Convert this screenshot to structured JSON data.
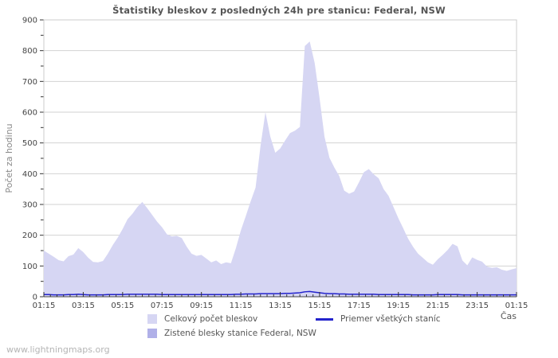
{
  "page": {
    "watermark": "www.lightningmaps.org",
    "background": "#ffffff"
  },
  "chart_data": {
    "type": "area",
    "title": "Štatistiky bleskov z posledných 24h pre stanicu: Federal, NSW",
    "ylabel": "Počet za hodinu",
    "xlabel": "Čas",
    "ylim": [
      0,
      900
    ],
    "grid": true,
    "legend_position": "bottom",
    "y_tick_labels": [
      "0",
      "100",
      "200",
      "300",
      "400",
      "500",
      "600",
      "700",
      "800",
      "900"
    ],
    "x_tick_labels": [
      "01:15",
      "03:15",
      "05:15",
      "07:15",
      "09:15",
      "11:15",
      "13:15",
      "15:15",
      "17:15",
      "19:15",
      "21:15",
      "23:15",
      "01:15"
    ],
    "x_start": "01:15",
    "x_step_minutes": 15,
    "series": [
      {
        "name": "Celkový počet bleskov",
        "type": "area",
        "color": "#d6d6f3",
        "values": [
          150,
          140,
          130,
          119,
          115,
          132,
          137,
          158,
          145,
          127,
          113,
          112,
          116,
          140,
          168,
          192,
          220,
          252,
          270,
          292,
          308,
          288,
          266,
          244,
          226,
          203,
          196,
          198,
          191,
          163,
          140,
          133,
          136,
          124,
          112,
          118,
          106,
          112,
          109,
          158,
          215,
          262,
          310,
          355,
          490,
          600,
          520,
          468,
          482,
          508,
          532,
          540,
          552,
          815,
          830,
          760,
          645,
          520,
          452,
          420,
          392,
          345,
          335,
          342,
          372,
          405,
          415,
          398,
          385,
          350,
          328,
          292,
          255,
          222,
          188,
          162,
          140,
          126,
          112,
          104,
          122,
          136,
          152,
          172,
          164,
          118,
          102,
          128,
          120,
          114,
          98,
          94,
          96,
          88,
          84,
          89,
          93
        ]
      },
      {
        "name": "Zistené blesky stanice Federal, NSW",
        "type": "area",
        "color": "#b0b0e8",
        "values": [
          0,
          0,
          0,
          0,
          0,
          0,
          0,
          0,
          0,
          0,
          0,
          0,
          0,
          0,
          0,
          0,
          0,
          0,
          0,
          0,
          0,
          0,
          0,
          0,
          0,
          0,
          0,
          0,
          0,
          0,
          0,
          0,
          0,
          0,
          0,
          0,
          0,
          0,
          0,
          0,
          0,
          0,
          0,
          0,
          0,
          0,
          0,
          0,
          0,
          0,
          0,
          0,
          0,
          0,
          0,
          0,
          0,
          0,
          0,
          0,
          0,
          0,
          0,
          0,
          0,
          0,
          0,
          0,
          0,
          0,
          0,
          0,
          0,
          0,
          0,
          0,
          0,
          0,
          0,
          0,
          0,
          0,
          0,
          0,
          0,
          0,
          0,
          0,
          0,
          0,
          0,
          0,
          0,
          0,
          0,
          0,
          0
        ]
      },
      {
        "name": "Priemer všetkých staníc",
        "type": "line",
        "color": "#2323cc",
        "values": [
          7,
          7,
          6,
          6,
          6,
          7,
          7,
          8,
          7,
          6,
          6,
          6,
          6,
          7,
          7,
          7,
          7,
          8,
          8,
          8,
          8,
          8,
          8,
          8,
          7,
          7,
          7,
          7,
          7,
          7,
          7,
          7,
          7,
          7,
          7,
          7,
          7,
          7,
          7,
          8,
          8,
          9,
          9,
          9,
          10,
          10,
          10,
          10,
          10,
          11,
          11,
          12,
          13,
          16,
          17,
          15,
          13,
          11,
          10,
          10,
          9,
          9,
          8,
          8,
          8,
          8,
          8,
          8,
          7,
          7,
          7,
          7,
          7,
          7,
          7,
          6,
          6,
          6,
          6,
          6,
          7,
          7,
          7,
          7,
          7,
          6,
          6,
          6,
          6,
          6,
          6,
          6,
          6,
          6,
          6,
          6,
          6
        ]
      }
    ],
    "colors": {
      "grid": "#d2d2d2",
      "plot_border": "#cccccc",
      "axis": "#444444",
      "tick": "#333333",
      "tick_label": "#444444",
      "title": "#555555",
      "legend_text": "#555555",
      "watermark": "#b5b5b5"
    }
  }
}
